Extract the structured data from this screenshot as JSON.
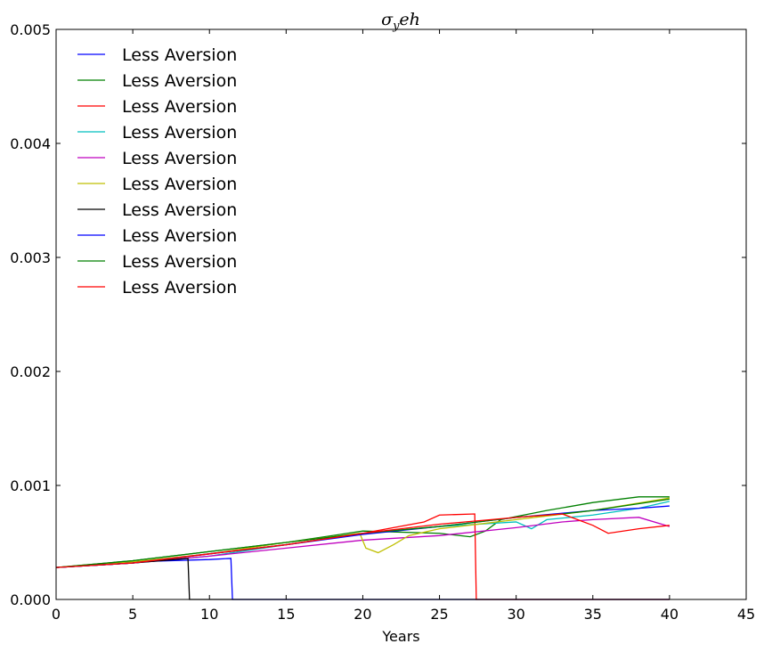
{
  "chart_data": {
    "type": "line",
    "title": "σ_y eh",
    "title_main": "σ",
    "title_sub": "y",
    "title_rest": "eh",
    "xlabel": "Years",
    "ylabel": "",
    "xlim": [
      0,
      45
    ],
    "ylim": [
      0,
      0.005
    ],
    "xticks": [
      0,
      5,
      10,
      15,
      20,
      25,
      30,
      35,
      40,
      45
    ],
    "xtick_labels": [
      "0",
      "5",
      "10",
      "15",
      "20",
      "25",
      "30",
      "35",
      "40",
      "45"
    ],
    "yticks": [
      0,
      0.001,
      0.002,
      0.003,
      0.004,
      0.005
    ],
    "ytick_labels": [
      "0.000",
      "0.001",
      "0.002",
      "0.003",
      "0.004",
      "0.005"
    ],
    "grid": false,
    "legend_position": "top-left",
    "series": [
      {
        "name": "Less Aversion",
        "color": "#0000ff",
        "points": [
          [
            0,
            0.00028
          ],
          [
            5,
            0.00033
          ],
          [
            10,
            0.00035
          ],
          [
            11.4,
            0.00036
          ],
          [
            11.5,
            0.0
          ],
          [
            40,
            0.0
          ]
        ]
      },
      {
        "name": "Less Aversion",
        "color": "#008000",
        "points": [
          [
            0,
            0.00028
          ],
          [
            5,
            0.00034
          ],
          [
            10,
            0.00042
          ],
          [
            15,
            0.0005
          ],
          [
            20,
            0.0006
          ],
          [
            25,
            0.00058
          ],
          [
            27,
            0.00055
          ],
          [
            28,
            0.0006
          ],
          [
            29,
            0.0007
          ],
          [
            32,
            0.00078
          ],
          [
            35,
            0.00085
          ],
          [
            38,
            0.0009
          ],
          [
            40,
            0.0009
          ]
        ]
      },
      {
        "name": "Less Aversion",
        "color": "#ff0000",
        "points": [
          [
            0,
            0.00028
          ],
          [
            5,
            0.00032
          ],
          [
            10,
            0.0004
          ],
          [
            15,
            0.00048
          ],
          [
            20,
            0.00058
          ],
          [
            24,
            0.00068
          ],
          [
            25,
            0.00074
          ],
          [
            27.3,
            0.00075
          ],
          [
            27.4,
            0.0
          ],
          [
            40,
            0.0
          ]
        ]
      },
      {
        "name": "Less Aversion",
        "color": "#00bfbf",
        "points": [
          [
            0,
            0.00028
          ],
          [
            5,
            0.00032
          ],
          [
            10,
            0.00038
          ],
          [
            15,
            0.00048
          ],
          [
            20,
            0.00058
          ],
          [
            25,
            0.00064
          ],
          [
            30,
            0.00068
          ],
          [
            31,
            0.00062
          ],
          [
            32,
            0.0007
          ],
          [
            35,
            0.00074
          ],
          [
            38,
            0.0008
          ],
          [
            40,
            0.00086
          ]
        ]
      },
      {
        "name": "Less Aversion",
        "color": "#bf00bf",
        "points": [
          [
            0,
            0.00028
          ],
          [
            5,
            0.00032
          ],
          [
            10,
            0.00038
          ],
          [
            15,
            0.00045
          ],
          [
            20,
            0.00052
          ],
          [
            25,
            0.00056
          ],
          [
            30,
            0.00063
          ],
          [
            33,
            0.00068
          ],
          [
            35,
            0.0007
          ],
          [
            38,
            0.00072
          ],
          [
            40,
            0.00064
          ]
        ]
      },
      {
        "name": "Less Aversion",
        "color": "#bfbf00",
        "points": [
          [
            0,
            0.00028
          ],
          [
            5,
            0.00033
          ],
          [
            10,
            0.0004
          ],
          [
            15,
            0.0005
          ],
          [
            19.8,
            0.00058
          ],
          [
            20.2,
            0.00045
          ],
          [
            21,
            0.00041
          ],
          [
            22,
            0.00048
          ],
          [
            23,
            0.00056
          ],
          [
            25,
            0.00062
          ],
          [
            30,
            0.0007
          ],
          [
            35,
            0.00078
          ],
          [
            40,
            0.00089
          ]
        ]
      },
      {
        "name": "Less Aversion",
        "color": "#000000",
        "points": [
          [
            0,
            0.00028
          ],
          [
            5,
            0.00032
          ],
          [
            8.6,
            0.00036
          ],
          [
            8.7,
            0.0
          ],
          [
            40,
            0.0
          ]
        ]
      },
      {
        "name": "Less Aversion",
        "color": "#0000ff",
        "points": [
          [
            0,
            0.00028
          ],
          [
            5,
            0.00032
          ],
          [
            10,
            0.0004
          ],
          [
            15,
            0.00048
          ],
          [
            20,
            0.00057
          ],
          [
            25,
            0.00064
          ],
          [
            30,
            0.00072
          ],
          [
            35,
            0.00078
          ],
          [
            38,
            0.0008
          ],
          [
            40,
            0.00082
          ]
        ]
      },
      {
        "name": "Less Aversion",
        "color": "#008000",
        "points": [
          [
            0,
            0.00028
          ],
          [
            5,
            0.00034
          ],
          [
            10,
            0.00042
          ],
          [
            15,
            0.0005
          ],
          [
            20,
            0.00058
          ],
          [
            25,
            0.00064
          ],
          [
            30,
            0.00072
          ],
          [
            33,
            0.00075
          ],
          [
            35,
            0.00078
          ],
          [
            38,
            0.00084
          ],
          [
            40,
            0.00088
          ]
        ]
      },
      {
        "name": "Less Aversion",
        "color": "#ff0000",
        "points": [
          [
            0,
            0.00028
          ],
          [
            5,
            0.00032
          ],
          [
            10,
            0.0004
          ],
          [
            15,
            0.00048
          ],
          [
            20,
            0.00058
          ],
          [
            25,
            0.00066
          ],
          [
            30,
            0.00072
          ],
          [
            33,
            0.00075
          ],
          [
            34,
            0.0007
          ],
          [
            35,
            0.00065
          ],
          [
            36,
            0.00058
          ],
          [
            38,
            0.00062
          ],
          [
            40,
            0.00065
          ]
        ]
      }
    ]
  }
}
